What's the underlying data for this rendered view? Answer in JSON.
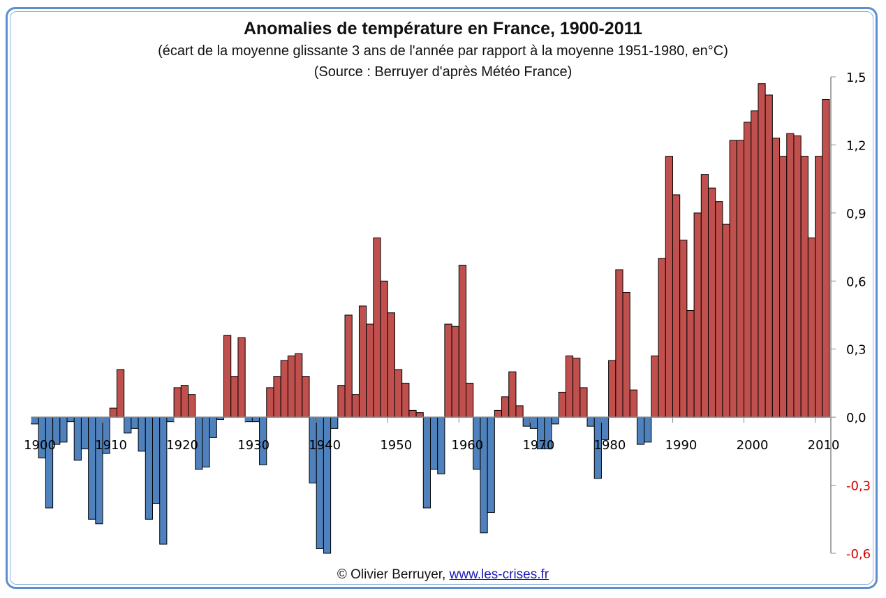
{
  "chart_data": {
    "type": "bar",
    "title": "Anomalies de température en France, 1900-2011",
    "subtitle": "(écart de la moyenne glissante 3 ans de l'année par rapport à la moyenne 1951-1980,  en°C)",
    "source": "(Source : Berruyer d'après Météo France)",
    "xlabel": "",
    "ylabel": "",
    "ylim": [
      -0.6,
      1.5
    ],
    "y_ticks": [
      1.5,
      1.2,
      0.9,
      0.6,
      0.3,
      0.0,
      -0.3,
      -0.6
    ],
    "y_tick_labels": [
      "1,5",
      "1,2",
      "0,9",
      "0,6",
      "0,3",
      "0,0",
      "-0,3",
      "-0,6"
    ],
    "x_tick_labels": [
      "1900",
      "1910",
      "1920",
      "1930",
      "1940",
      "1950",
      "1960",
      "1970",
      "1980",
      "1990",
      "2000",
      "2010"
    ],
    "x_start": 1900,
    "x_end": 2011,
    "y_axis_position": "right",
    "grid": false,
    "legend": "none",
    "colors": {
      "positive": "#c0504d",
      "negative": "#4f81bd",
      "negative_tick_label": "#d00000",
      "positive_tick_label": "#000000",
      "frame": "#5b8fcf"
    },
    "values": [
      -0.03,
      -0.18,
      -0.4,
      -0.12,
      -0.11,
      -0.02,
      -0.19,
      -0.14,
      -0.45,
      -0.47,
      -0.16,
      0.04,
      0.21,
      -0.07,
      -0.05,
      -0.15,
      -0.45,
      -0.38,
      -0.56,
      -0.02,
      0.13,
      0.14,
      0.1,
      -0.23,
      -0.22,
      -0.09,
      -0.01,
      0.36,
      0.18,
      0.35,
      -0.02,
      -0.02,
      -0.21,
      0.13,
      0.18,
      0.25,
      0.27,
      0.28,
      0.18,
      -0.29,
      -0.58,
      -0.6,
      -0.05,
      0.14,
      0.45,
      0.1,
      0.49,
      0.41,
      0.79,
      0.6,
      0.46,
      0.21,
      0.15,
      0.03,
      0.02,
      -0.4,
      -0.23,
      -0.25,
      0.41,
      0.4,
      0.67,
      0.15,
      -0.23,
      -0.51,
      -0.42,
      0.03,
      0.09,
      0.2,
      0.05,
      -0.04,
      -0.05,
      -0.14,
      -0.14,
      -0.03,
      0.11,
      0.27,
      0.26,
      0.13,
      -0.04,
      -0.27,
      -0.1,
      0.25,
      0.65,
      0.55,
      0.12,
      -0.12,
      -0.11,
      0.27,
      0.7,
      1.15,
      0.98,
      0.78,
      0.47,
      0.9,
      1.07,
      1.01,
      0.95,
      0.85,
      1.22,
      1.22,
      1.3,
      1.35,
      1.47,
      1.42,
      1.23,
      1.15,
      1.25,
      1.24,
      1.15,
      0.79,
      1.15,
      1.4
    ]
  },
  "footer": {
    "copyright": "© Olivier Berruyer, ",
    "link_text": "www.les-crises.fr"
  }
}
